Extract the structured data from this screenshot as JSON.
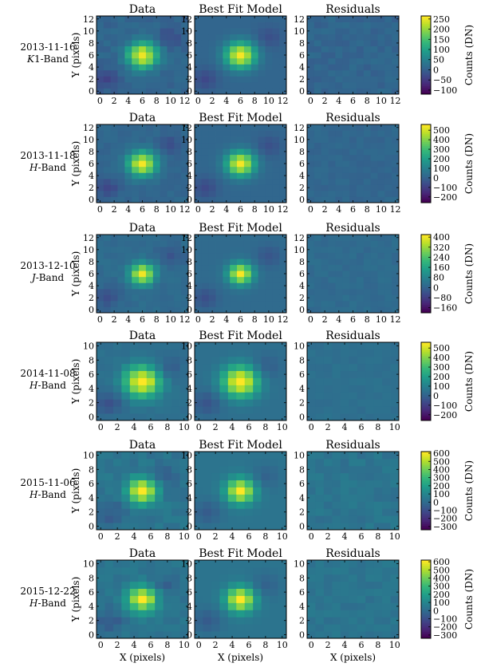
{
  "figure": {
    "column_titles": [
      "Data",
      "Best Fit Model",
      "Residuals"
    ],
    "xlabel": "X (pixels)",
    "ylabel": "Y (pixels)",
    "colorbar_label": "Counts (DN)",
    "colormap": [
      "#440154",
      "#482878",
      "#3e4989",
      "#31688e",
      "#26828e",
      "#1f9e89",
      "#35b779",
      "#6ece58",
      "#b5de2b",
      "#fde725"
    ]
  },
  "chart_data": [
    {
      "type": "heatmap",
      "date": "2013-11-16",
      "band": "K1-Band",
      "band_letter": "K",
      "band_suffix": "1-Band",
      "grid_size": 13,
      "xticks": [
        "0",
        "2",
        "4",
        "6",
        "8",
        "10",
        "12"
      ],
      "yticks": [
        "0",
        "2",
        "4",
        "6",
        "8",
        "10",
        "12"
      ],
      "colorbar_ticks": [
        "250",
        "200",
        "150",
        "100",
        "50",
        "0",
        "−50",
        "−100"
      ],
      "colorbar_tick_values": [
        250,
        200,
        150,
        100,
        50,
        0,
        -50,
        -100
      ],
      "vmin": -120,
      "vmax": 265,
      "peak": 255,
      "center": [
        6,
        6
      ],
      "sigma": 1.5,
      "background": 5,
      "residual_amplitude": 10
    },
    {
      "type": "heatmap",
      "date": "2013-11-18",
      "band": "H-Band",
      "band_letter": "H",
      "band_suffix": "-Band",
      "grid_size": 13,
      "xticks": [
        "0",
        "2",
        "4",
        "6",
        "8",
        "10",
        "12"
      ],
      "yticks": [
        "0",
        "2",
        "4",
        "6",
        "8",
        "10",
        "12"
      ],
      "colorbar_ticks": [
        "500",
        "400",
        "300",
        "200",
        "100",
        "0",
        "−100",
        "−200"
      ],
      "colorbar_tick_values": [
        500,
        400,
        300,
        200,
        100,
        0,
        -100,
        -200
      ],
      "vmin": -260,
      "vmax": 560,
      "peak": 540,
      "center": [
        6,
        6
      ],
      "sigma": 1.4,
      "background": 10,
      "residual_amplitude": 15
    },
    {
      "type": "heatmap",
      "date": "2013-12-10",
      "band": "J-Band",
      "band_letter": "J",
      "band_suffix": "-Band",
      "grid_size": 13,
      "xticks": [
        "0",
        "2",
        "4",
        "6",
        "8",
        "10",
        "12"
      ],
      "yticks": [
        "0",
        "2",
        "4",
        "6",
        "8",
        "10",
        "12"
      ],
      "colorbar_ticks": [
        "400",
        "320",
        "240",
        "160",
        "80",
        "0",
        "−80",
        "−160"
      ],
      "colorbar_tick_values": [
        400,
        320,
        240,
        160,
        80,
        0,
        -80,
        -160
      ],
      "vmin": -200,
      "vmax": 420,
      "peak": 400,
      "center": [
        6,
        6
      ],
      "sigma": 1.2,
      "background": 15,
      "residual_amplitude": 12
    },
    {
      "type": "heatmap",
      "date": "2014-11-08",
      "band": "H-Band",
      "band_letter": "H",
      "band_suffix": "-Band",
      "grid_size": 11,
      "xticks": [
        "0",
        "2",
        "4",
        "6",
        "8",
        "10"
      ],
      "yticks": [
        "0",
        "2",
        "4",
        "6",
        "8",
        "10"
      ],
      "colorbar_ticks": [
        "500",
        "400",
        "300",
        "200",
        "100",
        "0",
        "−100",
        "−200"
      ],
      "colorbar_tick_values": [
        500,
        400,
        300,
        200,
        100,
        0,
        -100,
        -200
      ],
      "vmin": -260,
      "vmax": 560,
      "peak": 540,
      "center": [
        5,
        5
      ],
      "sigma": 1.5,
      "background": 40,
      "residual_amplitude": 12
    },
    {
      "type": "heatmap",
      "date": "2015-11-06",
      "band": "H-Band",
      "band_letter": "H",
      "band_suffix": "-Band",
      "grid_size": 11,
      "xticks": [
        "0",
        "2",
        "4",
        "6",
        "8",
        "10"
      ],
      "yticks": [
        "0",
        "2",
        "4",
        "6",
        "8",
        "10"
      ],
      "colorbar_ticks": [
        "600",
        "500",
        "400",
        "300",
        "200",
        "100",
        "0",
        "−100",
        "−200",
        "−300"
      ],
      "colorbar_tick_values": [
        600,
        500,
        400,
        300,
        200,
        100,
        0,
        -100,
        -200,
        -300
      ],
      "vmin": -340,
      "vmax": 620,
      "peak": 590,
      "center": [
        5,
        5
      ],
      "sigma": 1.2,
      "background": 30,
      "residual_amplitude": 30
    },
    {
      "type": "heatmap",
      "date": "2015-12-22",
      "band": "H-Band",
      "band_letter": "H",
      "band_suffix": "-Band",
      "grid_size": 11,
      "xticks": [
        "0",
        "2",
        "4",
        "6",
        "8",
        "10"
      ],
      "yticks": [
        "0",
        "2",
        "4",
        "6",
        "8",
        "10"
      ],
      "colorbar_ticks": [
        "600",
        "500",
        "400",
        "300",
        "200",
        "100",
        "0",
        "−100",
        "−200",
        "−300"
      ],
      "colorbar_tick_values": [
        600,
        500,
        400,
        300,
        200,
        100,
        0,
        -100,
        -200,
        -300
      ],
      "vmin": -340,
      "vmax": 620,
      "peak": 600,
      "center": [
        5,
        5
      ],
      "sigma": 1.2,
      "background": 30,
      "residual_amplitude": 25
    }
  ]
}
